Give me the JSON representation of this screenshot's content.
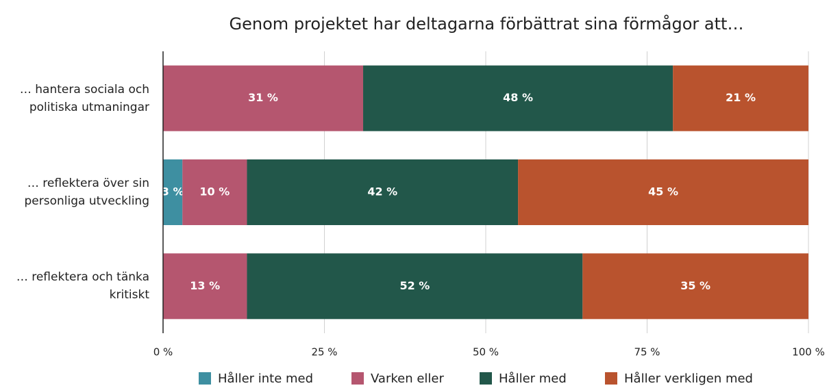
{
  "chart_data": {
    "type": "stacked_barh",
    "title": "Genom projektet har deltagarna förbättrat sina förmågor att…",
    "categories": [
      "… hantera sociala och politiska utmaningar",
      "… reflektera över sin personliga utveckling",
      "… reflektera och tänka kritiskt"
    ],
    "series": [
      {
        "name": "Håller inte med",
        "color": "#3e8fa1",
        "values": [
          null,
          3,
          null
        ],
        "value_labels": [
          null,
          "3 %",
          null
        ]
      },
      {
        "name": "Varken eller",
        "color": "#b5566f",
        "values": [
          31,
          10,
          13
        ],
        "value_labels": [
          "31 %",
          "10 %",
          "13 %"
        ]
      },
      {
        "name": "Håller med",
        "color": "#22574a",
        "values": [
          48,
          42,
          52
        ],
        "value_labels": [
          "48 %",
          "42 %",
          "52 %"
        ]
      },
      {
        "name": "Håller verkligen med",
        "color": "#b9532e",
        "values": [
          21,
          45,
          35
        ],
        "value_labels": [
          "21 %",
          "45 %",
          "35 %"
        ]
      }
    ],
    "xlim": [
      0,
      100
    ],
    "xticks": [
      {
        "value": 0,
        "label": "0 %"
      },
      {
        "value": 25,
        "label": "25 %"
      },
      {
        "value": 50,
        "label": "50 %"
      },
      {
        "value": 75,
        "label": "75 %"
      },
      {
        "value": 100,
        "label": "100 %"
      }
    ],
    "grid": true,
    "legend": "bottom"
  }
}
